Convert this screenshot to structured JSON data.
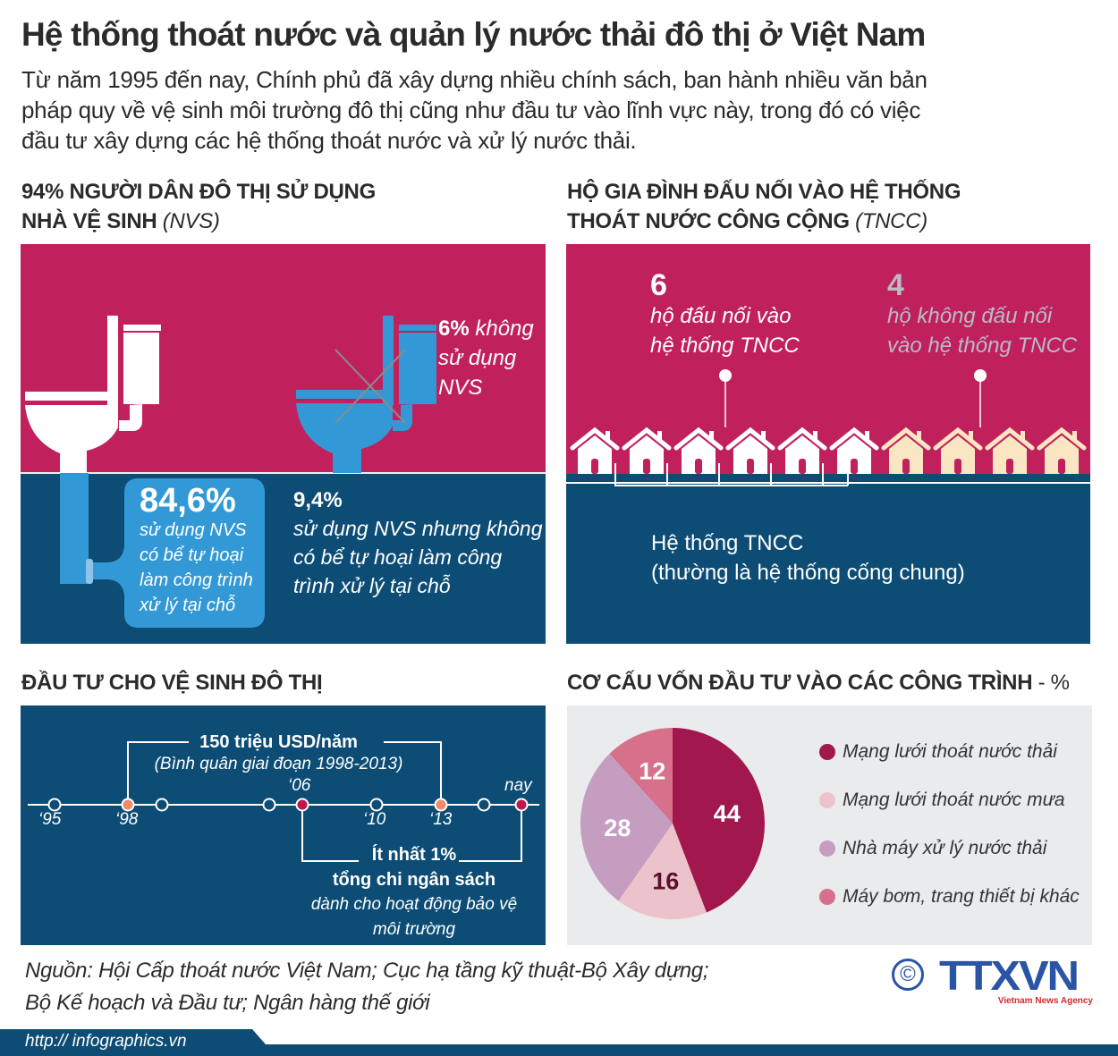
{
  "header": {
    "title": "Hệ thống thoát nước và quản lý nước thải đô thị ở Việt Nam",
    "intro_lines": [
      "Từ năm 1995 đến nay, Chính phủ đã xây dựng nhiều chính sách, ban hành nhiều văn bản",
      "pháp quy về vệ sinh môi trường đô thị cũng như đầu tư vào lĩnh vực này, trong đó có việc",
      "đầu tư xây dựng các hệ thống thoát nước và xử lý nước thải."
    ]
  },
  "toilet_panel": {
    "heading_line1": "94% NGƯỜI DÂN ĐÔ THỊ SỬ DỤNG",
    "heading_line2": "NHÀ VỆ SINH",
    "heading_abbr": "(NVS)",
    "not_using": {
      "value": "6%",
      "text_1": " không",
      "text_2": "sử dụng",
      "text_3": "NVS"
    },
    "septic": {
      "value": "84,6%",
      "lines": [
        "sử dụng NVS",
        "có bể tự hoại",
        "làm công trình",
        "xử lý tại chỗ"
      ]
    },
    "no_septic": {
      "value": "9,4%",
      "lines": [
        "sử dụng NVS nhưng không",
        "có bể tự hoại làm công",
        "trình xử lý tại chỗ"
      ]
    }
  },
  "households_panel": {
    "heading_line1": "HỘ GIA ĐÌNH ĐẤU NỐI VÀO HỆ THỐNG",
    "heading_line2": "THOÁT NƯỚC CÔNG CỘNG",
    "heading_abbr": "(TNCC)",
    "connected": {
      "value": "6",
      "line1": "hộ đấu nối vào",
      "line2": "hệ thống TNCC",
      "count": 6
    },
    "not_connected": {
      "value": "4",
      "line1": "hộ không đấu nối",
      "line2": "vào hệ thống TNCC",
      "count": 4
    },
    "system_line1": "Hệ thống TNCC",
    "system_line2": "(thường là hệ thống cống chung)"
  },
  "investment_panel": {
    "heading": "ĐẦU TƯ CHO VỆ SINH ĐÔ THỊ",
    "top_bracket_value": "150 triệu USD/năm",
    "top_bracket_note": "(Bình quân giai đoạn 1998-2013)",
    "timeline_labels": {
      "y95": "‘95",
      "y98": "‘98",
      "y06": "‘06",
      "y10": "‘10",
      "y13": "‘13",
      "now": "nay"
    },
    "bottom_bracket_value": "Ít nhất 1%",
    "bottom_bracket_line2": "tổng chi ngân sách",
    "bottom_bracket_line3": "dành cho hoạt động bảo vệ",
    "bottom_bracket_line4": "môi trường"
  },
  "structure_panel": {
    "heading": "CƠ CẤU VỐN ĐẦU TƯ VÀO CÁC CÔNG TRÌNH",
    "heading_unit": " - %"
  },
  "chart_data": {
    "type": "pie",
    "title": "CƠ CẤU VỐN ĐẦU TƯ VÀO CÁC CÔNG TRÌNH - %",
    "categories": [
      "Mạng lưới thoát nước thải",
      "Mạng lưới thoát nước mưa",
      "Nhà máy xử lý nước thải",
      "Máy bơm, trang thiết bị khác"
    ],
    "values": [
      44,
      16,
      28,
      12
    ],
    "colors": [
      "#a3174f",
      "#edc3cb",
      "#c59dc1",
      "#d7708a"
    ],
    "label_colors": [
      "#ffffff",
      "#5b0f2e",
      "#ffffff",
      "#ffffff"
    ],
    "legend_position": "right"
  },
  "footer": {
    "source_line1": "Nguồn: Hội Cấp thoát nước Việt Nam; Cục hạ tầng kỹ thuật-Bộ Xây dựng;",
    "source_line2": "Bộ Kế hoạch và Đầu tư; Ngân hàng thế giới",
    "copyright_symbol": "©",
    "logo_text": "TTXVN",
    "logo_subtitle": "Vietnam News Agency",
    "url": "http:// infographics.vn"
  },
  "colors": {
    "magenta": "#c0215d",
    "navy": "#0d4d75",
    "blue": "#3399d6",
    "cream": "#fbe6c3",
    "salmon": "#f08a6c",
    "crimson": "#c0154f",
    "logo_blue": "#2a54a6",
    "logo_red": "#d8262e"
  }
}
